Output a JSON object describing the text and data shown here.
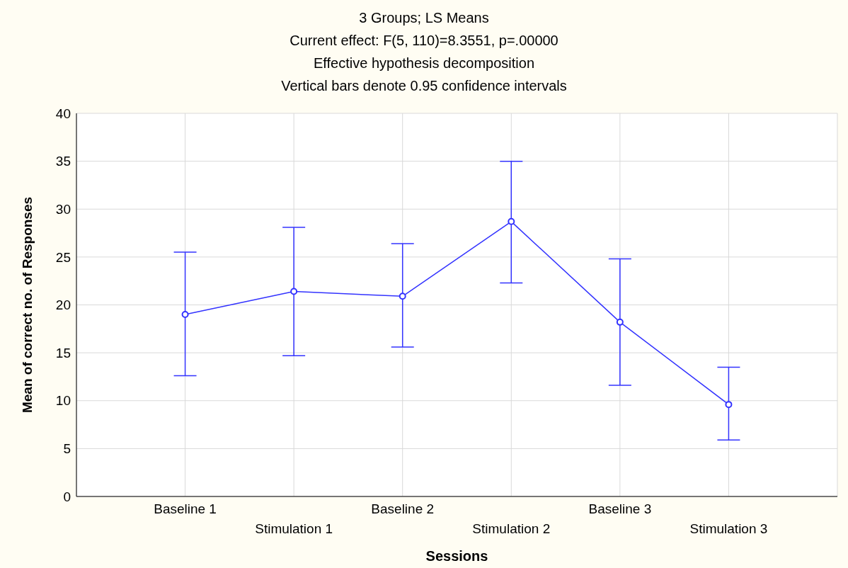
{
  "chart_data": {
    "type": "line",
    "title": "3 Groups; LS Means",
    "subtitle": "Current effect: F(5, 110)=8.3551, p=.00000",
    "annotations": [
      "Effective hypothesis decomposition",
      "Vertical bars denote 0.95 confidence intervals"
    ],
    "xlabel": "Sessions",
    "ylabel": "Mean of correct no. of Responses",
    "categories": [
      "Baseline 1",
      "Stimulation 1",
      "Baseline 2",
      "Stimulation 2",
      "Baseline 3",
      "Stimulation 3"
    ],
    "series": [
      {
        "color": "#3333ff",
        "values": [
          19.0,
          21.4,
          20.9,
          28.7,
          18.2,
          9.6
        ],
        "errors": [
          [
            12.6,
            25.5
          ],
          [
            14.7,
            28.1
          ],
          [
            15.6,
            26.4
          ],
          [
            22.3,
            35.0
          ],
          [
            11.6,
            24.8
          ],
          [
            5.9,
            13.5
          ]
        ]
      }
    ],
    "ylim": [
      0,
      40
    ],
    "yticks": [
      0,
      5,
      10,
      15,
      20,
      25,
      30,
      35,
      40
    ],
    "grid": true,
    "marker": "circle",
    "line_style": "solid",
    "legend": false
  }
}
